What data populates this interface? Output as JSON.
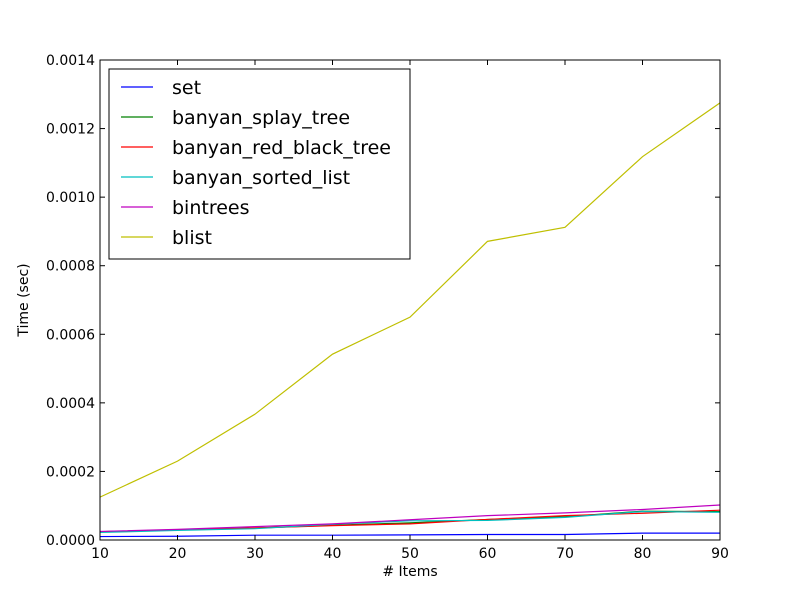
{
  "chart_data": {
    "type": "line",
    "title": "",
    "xlabel": "# Items",
    "ylabel": "Time (sec)",
    "xlim": [
      10,
      90
    ],
    "ylim": [
      0,
      0.0014
    ],
    "x": [
      10,
      20,
      30,
      40,
      50,
      60,
      70,
      80,
      90
    ],
    "x_ticks": [
      "10",
      "20",
      "30",
      "40",
      "50",
      "60",
      "70",
      "80",
      "90"
    ],
    "y_ticks": [
      {
        "value": 0,
        "label": "0.0000"
      },
      {
        "value": 0.0002,
        "label": "0.0002"
      },
      {
        "value": 0.0004,
        "label": "0.0004"
      },
      {
        "value": 0.0006,
        "label": "0.0006"
      },
      {
        "value": 0.0008,
        "label": "0.0008"
      },
      {
        "value": 0.001,
        "label": "0.0010"
      },
      {
        "value": 0.0012,
        "label": "0.0012"
      },
      {
        "value": 0.0014,
        "label": "0.0014"
      }
    ],
    "grid": false,
    "legend_position": "top-left",
    "series": [
      {
        "name": "set",
        "color": "#0000ff",
        "values": [
          1e-05,
          1.1e-05,
          1.4e-05,
          1.4e-05,
          1.5e-05,
          1.6e-05,
          1.6e-05,
          2e-05,
          2e-05
        ]
      },
      {
        "name": "banyan_splay_tree",
        "color": "#008000",
        "values": [
          2.4e-05,
          3e-05,
          3.5e-05,
          4.3e-05,
          5e-05,
          6e-05,
          6.8e-05,
          8.4e-05,
          8.3e-05
        ]
      },
      {
        "name": "banyan_red_black_tree",
        "color": "#ff0000",
        "values": [
          2.4e-05,
          2.9e-05,
          3.5e-05,
          4.2e-05,
          4.7e-05,
          6e-05,
          7.1e-05,
          7.8e-05,
          8.7e-05
        ]
      },
      {
        "name": "banyan_sorted_list",
        "color": "#00bfbf",
        "values": [
          2.2e-05,
          2.8e-05,
          3.3e-05,
          4.6e-05,
          5.6e-05,
          5.7e-05,
          6.6e-05,
          8.3e-05,
          8.1e-05
        ]
      },
      {
        "name": "bintrees",
        "color": "#bf00bf",
        "values": [
          2.5e-05,
          3.1e-05,
          3.9e-05,
          4.7e-05,
          5.9e-05,
          7.1e-05,
          7.9e-05,
          8.9e-05,
          0.000102
        ]
      },
      {
        "name": "blist",
        "color": "#bfbf00",
        "values": [
          0.000125,
          0.00023,
          0.000367,
          0.000542,
          0.00065,
          0.000871,
          0.000912,
          0.001118,
          0.001275
        ]
      }
    ]
  }
}
